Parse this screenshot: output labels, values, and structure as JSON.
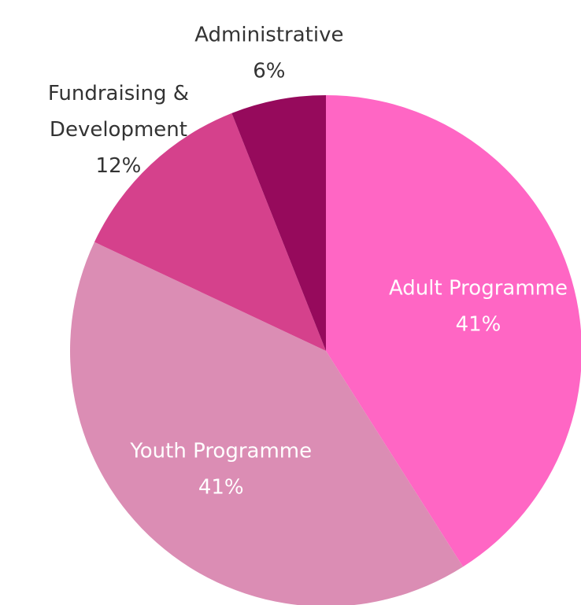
{
  "chart_data": {
    "type": "pie",
    "start_angle_deg": 0,
    "direction": "clockwise",
    "slices": [
      {
        "label": "Adult Programme",
        "value": 41,
        "value_label": "41%",
        "color": "#FF66C4",
        "label_color": "#ffffff",
        "label_position": "inside"
      },
      {
        "label": "Youth Programme",
        "value": 41,
        "value_label": "41%",
        "color": "#DB8DB4",
        "label_color": "#ffffff",
        "label_position": "inside"
      },
      {
        "label": "Fundraising & Development",
        "value": 12,
        "value_label": "12%",
        "color": "#D5418C",
        "label_color": "#333333",
        "label_position": "outside",
        "label_lines": [
          "Fundraising &",
          "Development"
        ]
      },
      {
        "label": "Administrative",
        "value": 6,
        "value_label": "6%",
        "color": "#960A5C",
        "label_color": "#333333",
        "label_position": "outside"
      }
    ]
  }
}
